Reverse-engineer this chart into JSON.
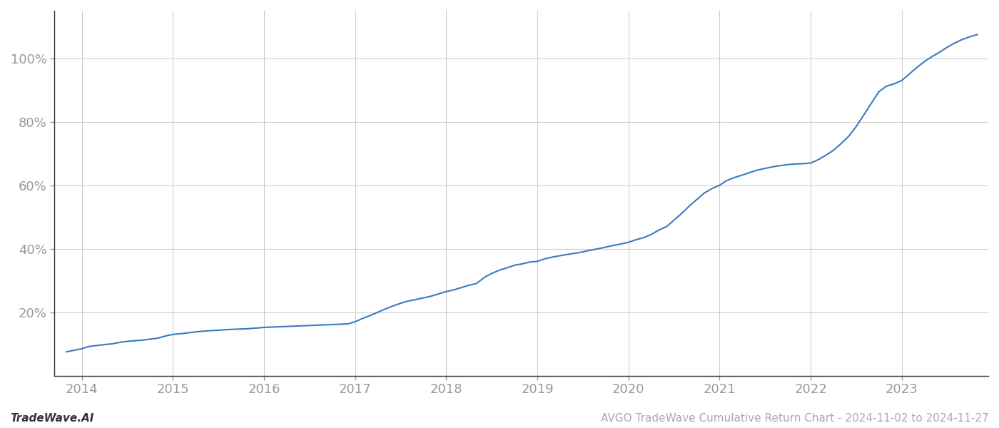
{
  "title": "AVGO TradeWave Cumulative Return Chart - 2024-11-02 to 2024-11-27",
  "watermark": "TradeWave.AI",
  "line_color": "#3a7bbf",
  "background_color": "#ffffff",
  "grid_color": "#cccccc",
  "x_years": [
    2013.83,
    2014.0,
    2014.08,
    2014.17,
    2014.25,
    2014.33,
    2014.42,
    2014.5,
    2014.58,
    2014.67,
    2014.75,
    2014.83,
    2014.92,
    2015.0,
    2015.08,
    2015.17,
    2015.25,
    2015.33,
    2015.42,
    2015.5,
    2015.58,
    2015.67,
    2015.75,
    2015.83,
    2015.92,
    2016.0,
    2016.08,
    2016.17,
    2016.25,
    2016.33,
    2016.42,
    2016.5,
    2016.58,
    2016.67,
    2016.75,
    2016.83,
    2016.92,
    2017.0,
    2017.08,
    2017.17,
    2017.25,
    2017.33,
    2017.42,
    2017.5,
    2017.58,
    2017.67,
    2017.75,
    2017.83,
    2017.92,
    2018.0,
    2018.08,
    2018.17,
    2018.25,
    2018.33,
    2018.42,
    2018.5,
    2018.58,
    2018.67,
    2018.75,
    2018.83,
    2018.92,
    2019.0,
    2019.08,
    2019.17,
    2019.25,
    2019.33,
    2019.42,
    2019.5,
    2019.58,
    2019.67,
    2019.75,
    2019.83,
    2019.92,
    2020.0,
    2020.08,
    2020.17,
    2020.25,
    2020.33,
    2020.42,
    2020.5,
    2020.58,
    2020.67,
    2020.75,
    2020.83,
    2020.92,
    2021.0,
    2021.08,
    2021.17,
    2021.25,
    2021.33,
    2021.42,
    2021.5,
    2021.58,
    2021.67,
    2021.75,
    2021.83,
    2021.92,
    2022.0,
    2022.08,
    2022.17,
    2022.25,
    2022.33,
    2022.42,
    2022.5,
    2022.58,
    2022.67,
    2022.75,
    2022.83,
    2022.92,
    2023.0,
    2023.08,
    2023.17,
    2023.25,
    2023.33,
    2023.42,
    2023.5,
    2023.58,
    2023.67,
    2023.75,
    2023.83
  ],
  "y_values": [
    0.075,
    0.085,
    0.092,
    0.095,
    0.098,
    0.1,
    0.105,
    0.108,
    0.11,
    0.112,
    0.115,
    0.118,
    0.125,
    0.13,
    0.132,
    0.135,
    0.138,
    0.14,
    0.142,
    0.143,
    0.145,
    0.146,
    0.147,
    0.148,
    0.15,
    0.152,
    0.153,
    0.154,
    0.155,
    0.156,
    0.157,
    0.158,
    0.159,
    0.16,
    0.161,
    0.162,
    0.163,
    0.17,
    0.18,
    0.19,
    0.2,
    0.21,
    0.22,
    0.228,
    0.235,
    0.24,
    0.245,
    0.25,
    0.258,
    0.265,
    0.27,
    0.278,
    0.285,
    0.29,
    0.31,
    0.322,
    0.332,
    0.34,
    0.348,
    0.352,
    0.358,
    0.36,
    0.368,
    0.374,
    0.378,
    0.382,
    0.386,
    0.39,
    0.395,
    0.4,
    0.405,
    0.41,
    0.415,
    0.42,
    0.428,
    0.435,
    0.445,
    0.458,
    0.47,
    0.49,
    0.51,
    0.535,
    0.555,
    0.575,
    0.59,
    0.6,
    0.615,
    0.625,
    0.632,
    0.64,
    0.648,
    0.653,
    0.658,
    0.662,
    0.665,
    0.667,
    0.668,
    0.67,
    0.68,
    0.695,
    0.71,
    0.73,
    0.755,
    0.785,
    0.82,
    0.86,
    0.895,
    0.912,
    0.92,
    0.93,
    0.95,
    0.972,
    0.99,
    1.005,
    1.02,
    1.035,
    1.048,
    1.06,
    1.068,
    1.075
  ],
  "x_tick_labels": [
    "2014",
    "2015",
    "2016",
    "2017",
    "2018",
    "2019",
    "2020",
    "2021",
    "2022",
    "2023"
  ],
  "x_tick_positions": [
    2014.0,
    2015.0,
    2016.0,
    2017.0,
    2018.0,
    2019.0,
    2020.0,
    2021.0,
    2022.0,
    2023.0
  ],
  "y_tick_values": [
    0.2,
    0.4,
    0.6,
    0.8,
    1.0
  ],
  "y_tick_labels": [
    "20%",
    "40%",
    "60%",
    "80%",
    "100%"
  ],
  "xlim": [
    2013.7,
    2023.95
  ],
  "ylim": [
    0.0,
    1.15
  ],
  "line_width": 1.5,
  "spine_color": "#333333",
  "tick_color": "#999999",
  "tick_fontsize": 13,
  "footer_left": "TradeWave.AI",
  "footer_right": "AVGO TradeWave Cumulative Return Chart - 2024-11-02 to 2024-11-27",
  "footer_fontsize": 11,
  "footer_color": "#aaaaaa"
}
